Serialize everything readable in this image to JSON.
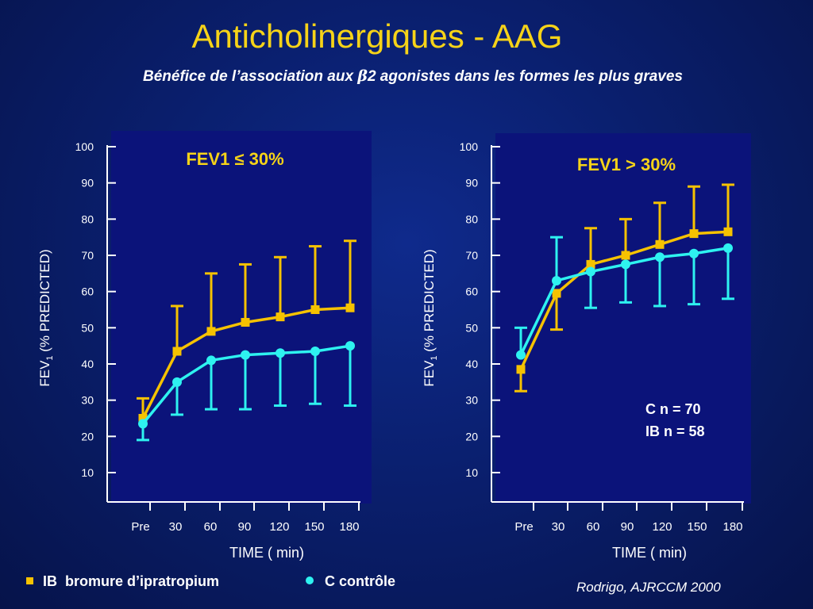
{
  "title": "Anticholinergiques - AAG",
  "subtitle_pre": "Bénéfice de l’association aux ",
  "subtitle_beta": "β",
  "subtitle_post": "2 agonistes dans les formes les plus graves",
  "colors": {
    "ib": "#f6c200",
    "c": "#2ef2f0",
    "title": "#f6d318",
    "plot_bg": "#0b137a"
  },
  "legend": {
    "ib_code": "IB",
    "ib_label": "bromure d’ipratropium",
    "c_code": "C",
    "c_label": "contrôle"
  },
  "citation": "Rodrigo, AJRCCM 2000",
  "chart_data": [
    {
      "type": "line",
      "title": "FEV1 ≤ 30%",
      "xlabel": "TIME ( min)",
      "ylabel_main": "FEV",
      "ylabel_sub": "1",
      "ylabel_rest": " (% PREDICTED)",
      "categories": [
        "Pre",
        "30",
        "60",
        "90",
        "120",
        "150",
        "180"
      ],
      "yticks": [
        10,
        20,
        30,
        40,
        50,
        60,
        70,
        80,
        90,
        100
      ],
      "ylim": [
        5,
        105
      ],
      "series": [
        {
          "name": "IB",
          "marker": "square",
          "values": [
            25,
            43.5,
            49,
            51.5,
            53,
            55,
            55.5
          ],
          "err": [
            30.5,
            56,
            65,
            67.5,
            69.5,
            72.5,
            74
          ]
        },
        {
          "name": "C",
          "marker": "circle",
          "values": [
            23.5,
            35,
            41,
            42.5,
            43,
            43.5,
            45
          ],
          "err": [
            19,
            26,
            27.5,
            27.5,
            28.5,
            29,
            28.5
          ]
        }
      ]
    },
    {
      "type": "line",
      "title": "FEV1 > 30%",
      "xlabel": "TIME ( min)",
      "ylabel_main": "FEV",
      "ylabel_sub": "1",
      "ylabel_rest": " (% PREDICTED)",
      "categories": [
        "Pre",
        "30",
        "60",
        "90",
        "120",
        "150",
        "180"
      ],
      "yticks": [
        10,
        20,
        30,
        40,
        50,
        60,
        70,
        80,
        90,
        100
      ],
      "ylim": [
        5,
        105
      ],
      "annotation_line1": "C  n = 70",
      "annotation_line2": "IB n = 58",
      "series": [
        {
          "name": "IB",
          "marker": "square",
          "values": [
            38.5,
            59.5,
            67.5,
            70,
            73,
            76,
            76.5
          ],
          "err": [
            32.5,
            49.5,
            77.5,
            80,
            84.5,
            89,
            89.5
          ]
        },
        {
          "name": "C",
          "marker": "circle",
          "values": [
            42.5,
            63,
            65.5,
            67.5,
            69.5,
            70.5,
            72
          ],
          "err": [
            50,
            75,
            55.5,
            57,
            56,
            56.5,
            58
          ]
        }
      ]
    }
  ]
}
